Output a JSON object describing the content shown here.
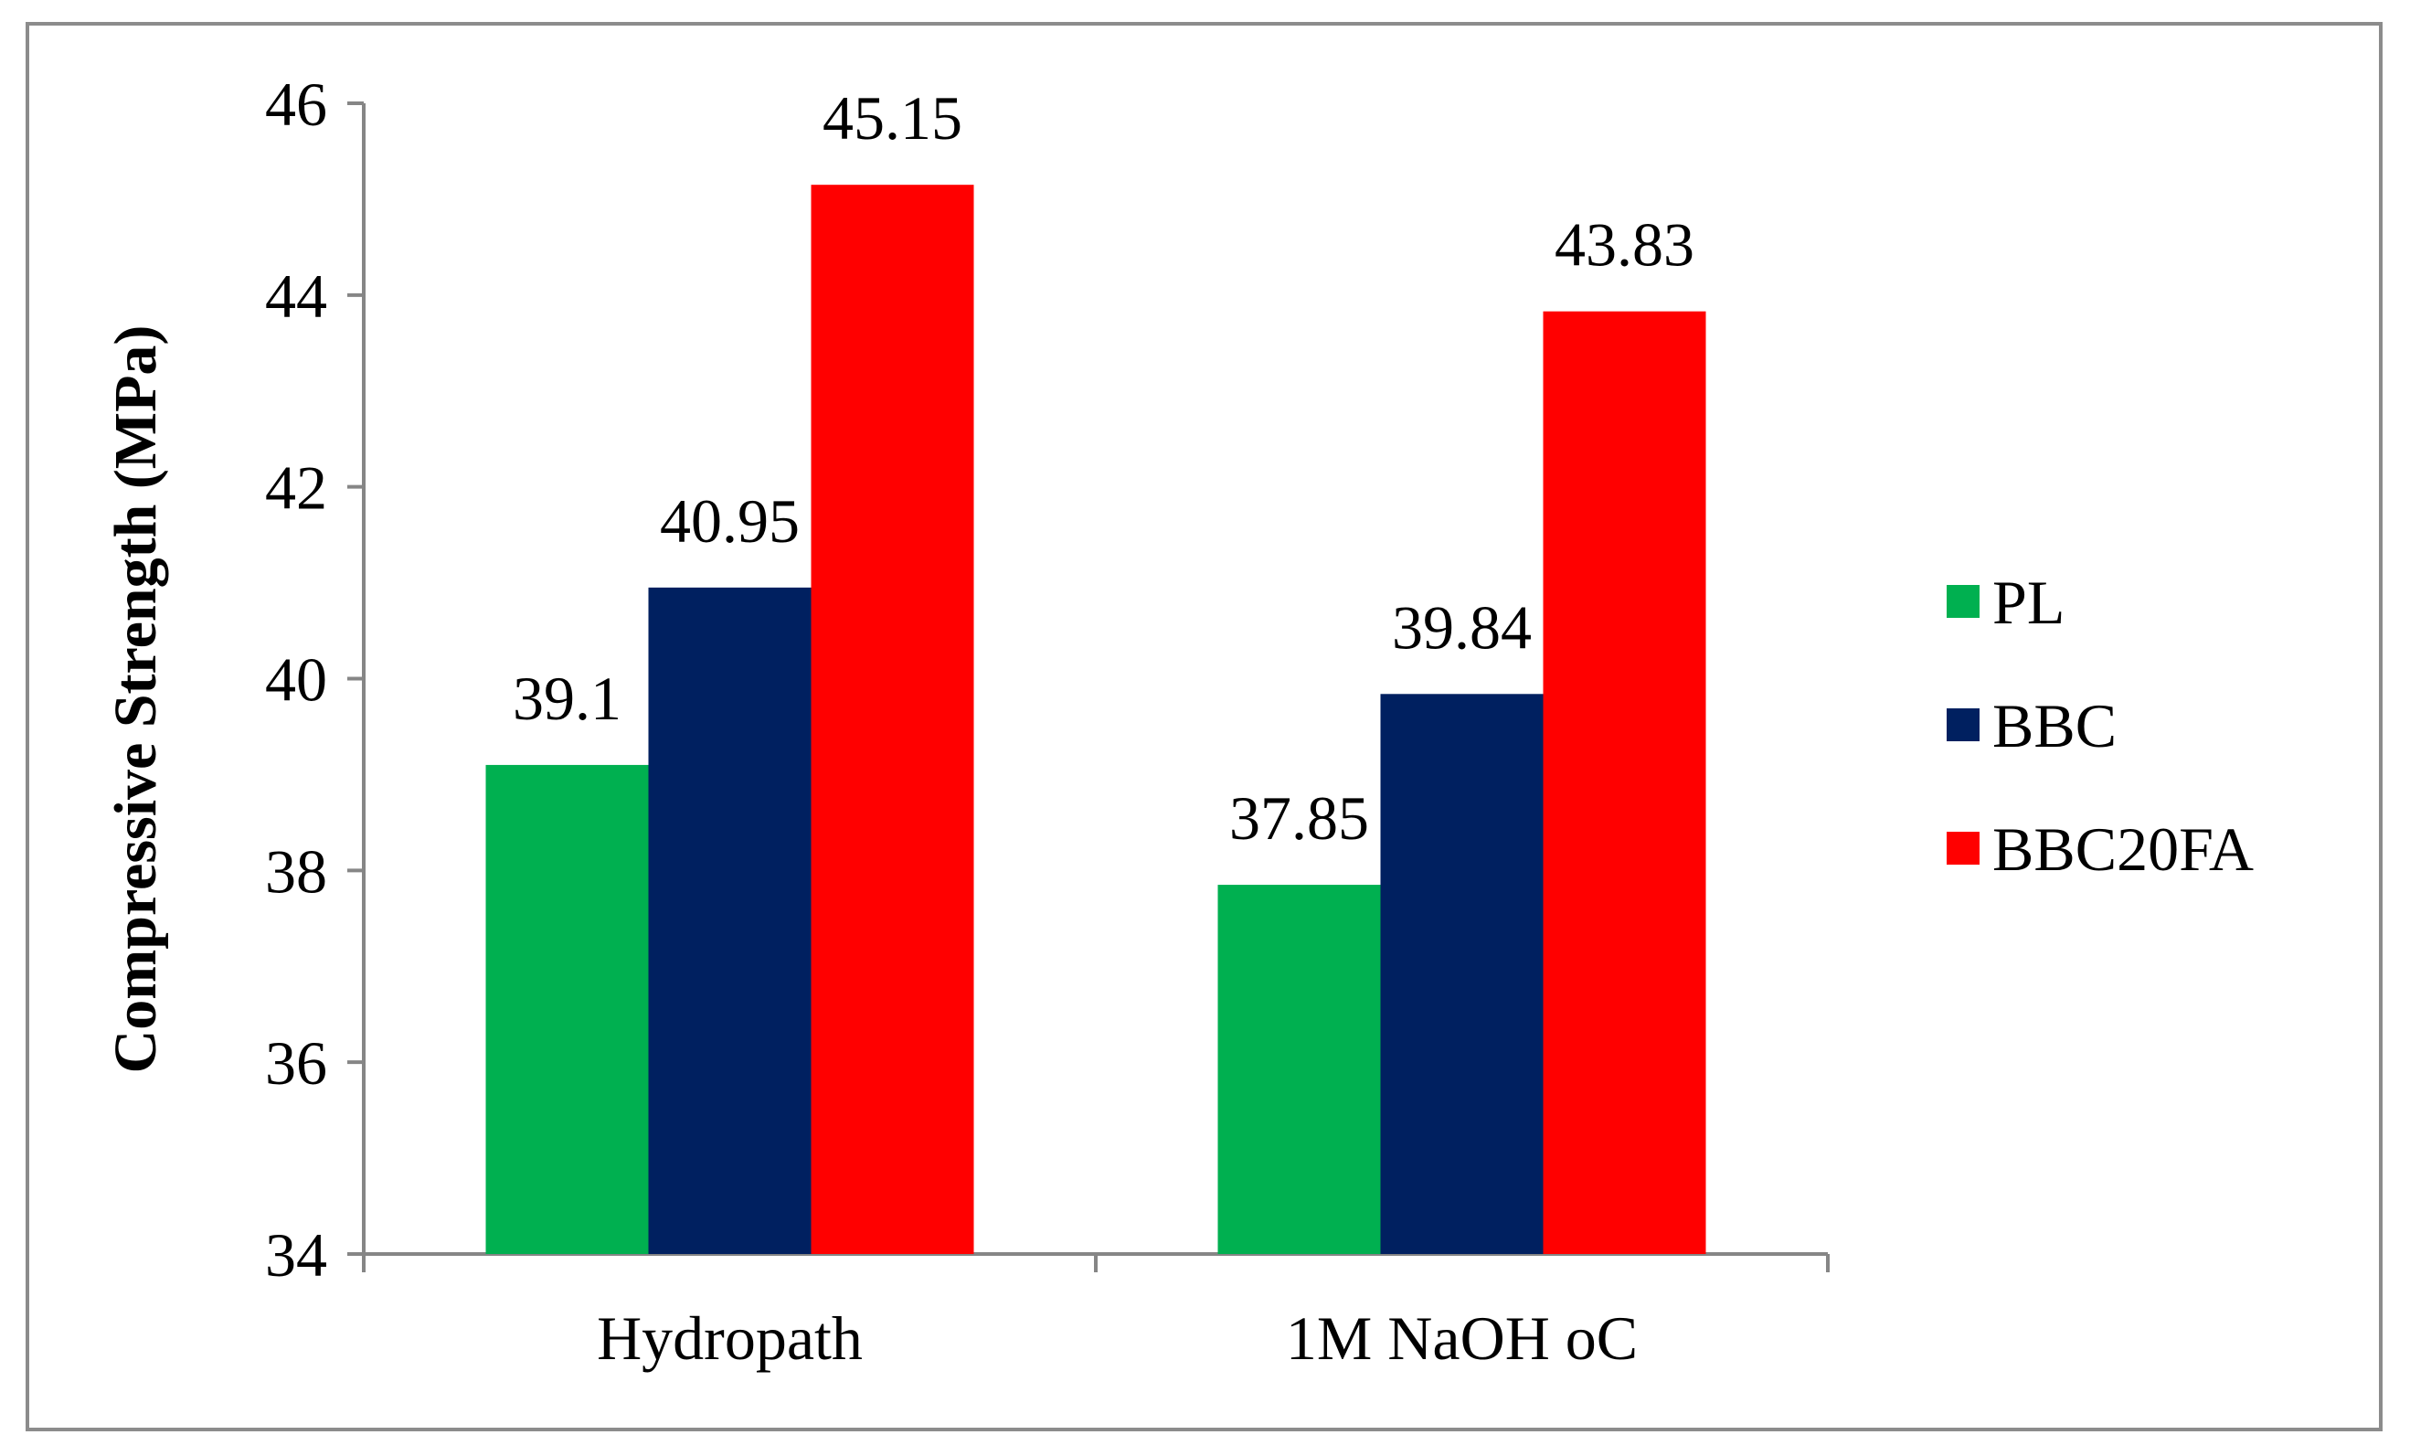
{
  "chart_data": {
    "type": "bar",
    "ylabel": "Compressive Strength (MPa)",
    "xlabel": "",
    "ylim": [
      34,
      46
    ],
    "yticks": [
      34,
      36,
      38,
      40,
      42,
      44,
      46
    ],
    "categories": [
      "Hydropath",
      "1M NaOH oC"
    ],
    "series": [
      {
        "name": "PL",
        "color": "#00b050",
        "values": [
          39.1,
          37.85
        ],
        "labels": [
          "39.1",
          "37.85"
        ]
      },
      {
        "name": "BBC",
        "color": "#002060",
        "values": [
          40.95,
          39.84
        ],
        "labels": [
          "40.95",
          "39.84"
        ]
      },
      {
        "name": "BBC20FA",
        "color": "#ff0000",
        "values": [
          45.15,
          43.83
        ],
        "labels": [
          "45.15",
          "43.83"
        ]
      }
    ],
    "legend_position": "right",
    "grid": false
  }
}
